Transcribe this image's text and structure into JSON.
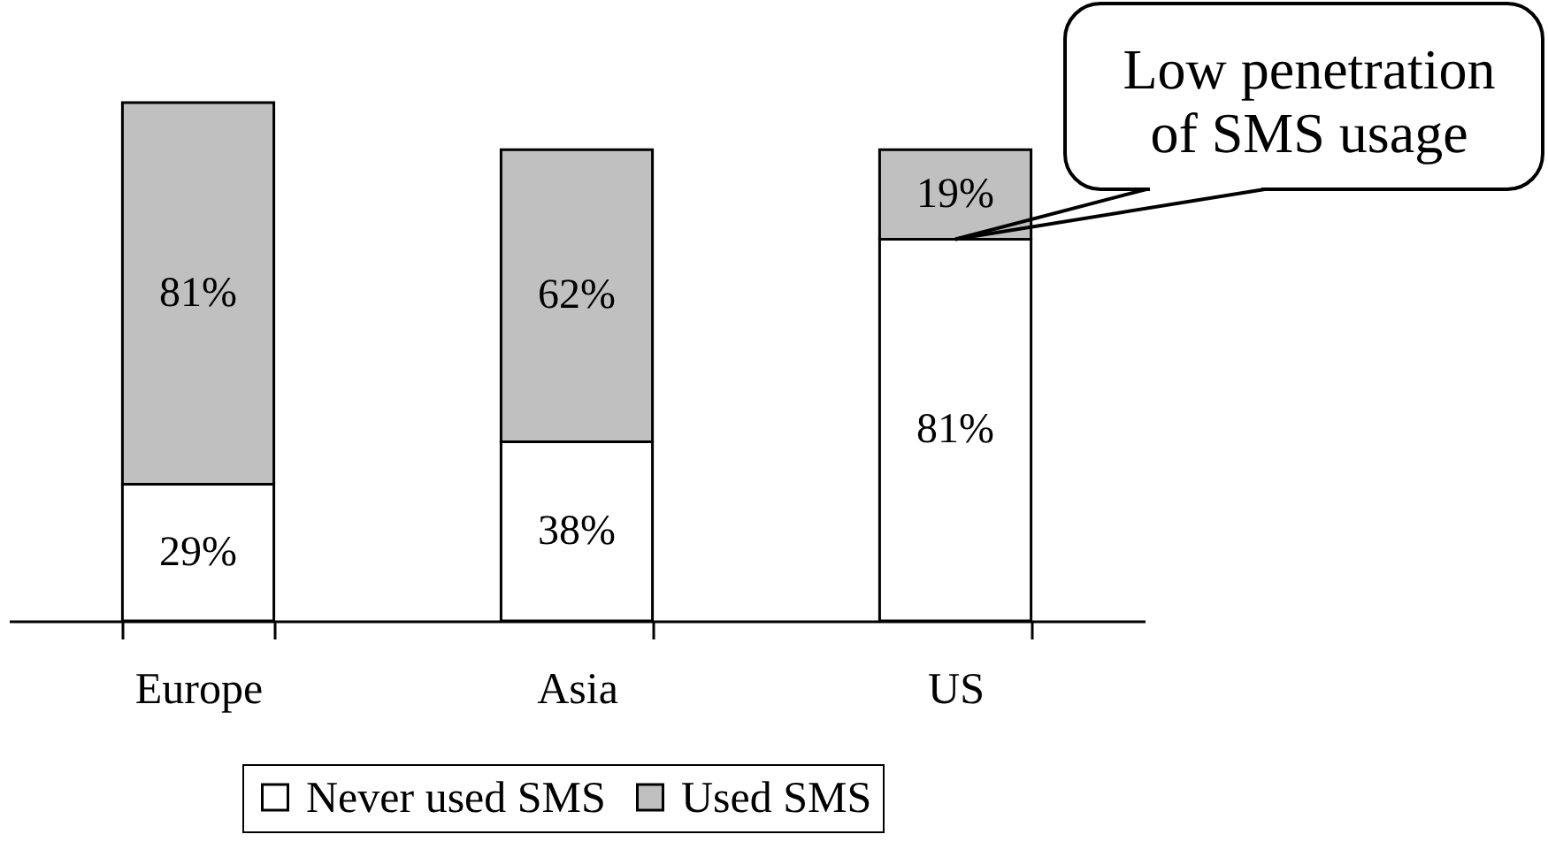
{
  "chart_data": {
    "type": "bar",
    "stacked": true,
    "categories": [
      "Europe",
      "Asia",
      "US"
    ],
    "series": [
      {
        "name": "Never used SMS",
        "color": "#ffffff",
        "values": [
          29,
          38,
          81
        ],
        "value_labels": [
          "29%",
          "38%",
          "81%"
        ]
      },
      {
        "name": "Used SMS",
        "color": "#c0c0c0",
        "values": [
          81,
          62,
          19
        ],
        "value_labels": [
          "81%",
          "62%",
          "19%"
        ]
      }
    ],
    "legend": "bottom",
    "tick_labels": "x",
    "annotations": [
      {
        "text": "Low penetration\nof SMS usage",
        "x": "US",
        "y": 81
      }
    ]
  }
}
